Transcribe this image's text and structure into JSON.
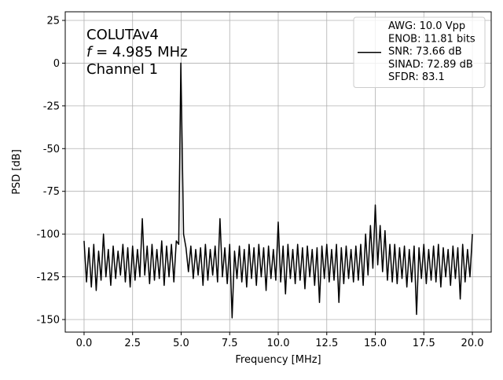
{
  "chart_data": {
    "type": "line",
    "annotation": {
      "lines": [
        "COLUTAv4",
        {
          "italic": "f",
          "text": " = 4.985 MHz"
        },
        "Channel 1"
      ]
    },
    "x_label": "Frequency [MHz]",
    "y_label": "PSD [dB]",
    "xlim": [
      -0.97,
      20.97
    ],
    "ylim": [
      -157.35,
      30.05
    ],
    "xticks": [
      {
        "value": 0,
        "label": "0.0"
      },
      {
        "value": 2.5,
        "label": "2.5"
      },
      {
        "value": 5,
        "label": "5.0"
      },
      {
        "value": 7.5,
        "label": "7.5"
      },
      {
        "value": 10,
        "label": "10.0"
      },
      {
        "value": 12.5,
        "label": "12.5"
      },
      {
        "value": 15,
        "label": "15.0"
      },
      {
        "value": 17.5,
        "label": "17.5"
      },
      {
        "value": 20,
        "label": "20.0"
      }
    ],
    "yticks": [
      25,
      0,
      -25,
      -50,
      -75,
      -100,
      -125,
      -150
    ],
    "grid": true,
    "legend": "upper right",
    "x": [
      0,
      0.125,
      0.25,
      0.375,
      0.5,
      0.625,
      0.75,
      0.875,
      1,
      1.125,
      1.25,
      1.375,
      1.5,
      1.625,
      1.75,
      1.875,
      2,
      2.125,
      2.25,
      2.375,
      2.5,
      2.625,
      2.75,
      2.875,
      3,
      3.125,
      3.25,
      3.375,
      3.5,
      3.625,
      3.75,
      3.875,
      4,
      4.125,
      4.25,
      4.375,
      4.5,
      4.625,
      4.75,
      4.875,
      4.985,
      5.125,
      5.25,
      5.375,
      5.5,
      5.625,
      5.75,
      5.875,
      6,
      6.125,
      6.25,
      6.375,
      6.5,
      6.625,
      6.75,
      6.875,
      7,
      7.125,
      7.25,
      7.375,
      7.5,
      7.625,
      7.75,
      7.875,
      8,
      8.125,
      8.25,
      8.375,
      8.5,
      8.625,
      8.75,
      8.875,
      9,
      9.125,
      9.25,
      9.375,
      9.5,
      9.625,
      9.75,
      9.875,
      10,
      10.125,
      10.25,
      10.375,
      10.5,
      10.625,
      10.75,
      10.875,
      11,
      11.125,
      11.25,
      11.375,
      11.5,
      11.625,
      11.75,
      11.875,
      12,
      12.125,
      12.25,
      12.375,
      12.5,
      12.625,
      12.75,
      12.875,
      13,
      13.125,
      13.25,
      13.375,
      13.5,
      13.625,
      13.75,
      13.875,
      14,
      14.125,
      14.25,
      14.375,
      14.5,
      14.625,
      14.75,
      14.875,
      15,
      15.125,
      15.25,
      15.375,
      15.5,
      15.625,
      15.75,
      15.875,
      16,
      16.125,
      16.25,
      16.375,
      16.5,
      16.625,
      16.75,
      16.875,
      17,
      17.125,
      17.25,
      17.375,
      17.5,
      17.625,
      17.75,
      17.875,
      18,
      18.125,
      18.25,
      18.375,
      18.5,
      18.625,
      18.75,
      18.875,
      19,
      19.125,
      19.25,
      19.375,
      19.5,
      19.625,
      19.75,
      19.875,
      20
    ],
    "series": [
      {
        "name": "AWG: 10.0 Vpp\nENOB: 11.81 bits\nSNR: 73.66 dB\nSINAD: 72.89 dB\nSFDR: 83.1",
        "color": "#000000",
        "values": [
          -104,
          -128,
          -108,
          -131,
          -106,
          -133,
          -110,
          -127,
          -100,
          -125,
          -109,
          -130,
          -107,
          -126,
          -110,
          -124,
          -106,
          -128,
          -108,
          -131,
          -107,
          -127,
          -109,
          -125,
          -91,
          -124,
          -107,
          -129,
          -106,
          -127,
          -109,
          -126,
          -104,
          -130,
          -107,
          -125,
          -106,
          -128,
          -104,
          -106,
          0,
          -100,
          -108,
          -122,
          -107,
          -126,
          -109,
          -124,
          -108,
          -130,
          -106,
          -127,
          -109,
          -124,
          -107,
          -128,
          -91,
          -125,
          -108,
          -129,
          -106,
          -149,
          -110,
          -126,
          -107,
          -128,
          -109,
          -131,
          -106,
          -126,
          -108,
          -130,
          -106,
          -125,
          -108,
          -133,
          -107,
          -126,
          -109,
          -127,
          -93,
          -128,
          -107,
          -135,
          -106,
          -126,
          -109,
          -129,
          -106,
          -127,
          -108,
          -132,
          -107,
          -125,
          -109,
          -130,
          -108,
          -140,
          -107,
          -126,
          -106,
          -128,
          -109,
          -127,
          -106,
          -140,
          -108,
          -129,
          -107,
          -126,
          -109,
          -128,
          -107,
          -127,
          -106,
          -130,
          -100,
          -124,
          -95,
          -120,
          -83,
          -118,
          -95,
          -122,
          -98,
          -127,
          -106,
          -128,
          -106,
          -129,
          -108,
          -126,
          -107,
          -131,
          -109,
          -128,
          -107,
          -147,
          -108,
          -126,
          -106,
          -129,
          -109,
          -127,
          -107,
          -128,
          -106,
          -131,
          -108,
          -125,
          -109,
          -130,
          -107,
          -126,
          -108,
          -138,
          -106,
          -128,
          -109,
          -125,
          -100
        ]
      }
    ]
  }
}
